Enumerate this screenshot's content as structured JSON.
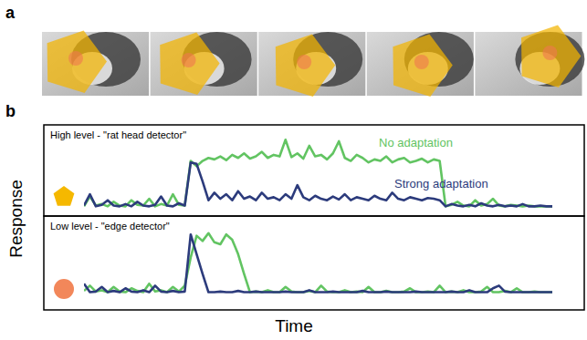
{
  "figure": {
    "panel_labels": [
      "a",
      "b"
    ],
    "ylabel": "Response",
    "xlabel": "Time"
  },
  "chart_data": [
    {
      "type": "line",
      "title": "High level - \"rat head detector\"",
      "tick_labels": false,
      "xlim": [
        0,
        79
      ],
      "ylim": [
        0,
        1
      ],
      "x": [
        0,
        1,
        2,
        3,
        4,
        5,
        6,
        7,
        8,
        9,
        10,
        11,
        12,
        13,
        14,
        15,
        16,
        17,
        18,
        19,
        20,
        21,
        22,
        23,
        24,
        25,
        26,
        27,
        28,
        29,
        30,
        31,
        32,
        33,
        34,
        35,
        36,
        37,
        38,
        39,
        40,
        41,
        42,
        43,
        44,
        45,
        46,
        47,
        48,
        49,
        50,
        51,
        52,
        53,
        54,
        55,
        56,
        57,
        58,
        59,
        60,
        61,
        62,
        63,
        64,
        65,
        66,
        67,
        68,
        69,
        70,
        71,
        72,
        73,
        74,
        75,
        76,
        77,
        78,
        79
      ],
      "series": [
        {
          "name": "No adaptation",
          "color": "#62c462",
          "values": [
            0.02,
            0.15,
            0.03,
            0.05,
            0.02,
            0.08,
            0.03,
            0.02,
            0.1,
            0.04,
            0.03,
            0.12,
            0.02,
            0.05,
            0.03,
            0.18,
            0.04,
            0.03,
            0.62,
            0.55,
            0.62,
            0.66,
            0.64,
            0.68,
            0.63,
            0.7,
            0.66,
            0.72,
            0.65,
            0.68,
            0.74,
            0.66,
            0.7,
            0.68,
            0.9,
            0.67,
            0.72,
            0.65,
            0.82,
            0.68,
            0.7,
            0.64,
            0.72,
            0.88,
            0.66,
            0.62,
            0.7,
            0.66,
            0.6,
            0.64,
            0.62,
            0.68,
            0.6,
            0.64,
            0.66,
            0.6,
            0.62,
            0.65,
            0.6,
            0.64,
            0.62,
            0.02,
            0.04,
            0.08,
            0.03,
            0.02,
            0.1,
            0.03,
            0.05,
            0.12,
            0.03,
            0.02,
            0.04,
            0.03,
            0.02,
            0.03,
            0.02,
            0.02,
            0.02,
            0.02
          ]
        },
        {
          "name": "Strong adaptation",
          "color": "#2c3b7c",
          "values": [
            0.03,
            0.18,
            0.02,
            0.04,
            0.1,
            0.03,
            0.02,
            0.05,
            0.02,
            0.08,
            0.03,
            0.02,
            0.04,
            0.15,
            0.03,
            0.02,
            0.06,
            0.03,
            0.6,
            0.58,
            0.35,
            0.1,
            0.2,
            0.12,
            0.18,
            0.1,
            0.22,
            0.12,
            0.15,
            0.1,
            0.2,
            0.12,
            0.14,
            0.1,
            0.18,
            0.12,
            0.3,
            0.14,
            0.1,
            0.16,
            0.12,
            0.1,
            0.15,
            0.11,
            0.18,
            0.1,
            0.14,
            0.12,
            0.1,
            0.16,
            0.12,
            0.1,
            0.2,
            0.12,
            0.1,
            0.14,
            0.12,
            0.1,
            0.13,
            0.12,
            0.1,
            0.02,
            0.05,
            0.03,
            0.02,
            0.04,
            0.02,
            0.06,
            0.03,
            0.02,
            0.04,
            0.02,
            0.03,
            0.02,
            0.05,
            0.02,
            0.02,
            0.03,
            0.02,
            0.02
          ]
        }
      ]
    },
    {
      "type": "line",
      "title": "Low level - \"edge detector\"",
      "tick_labels": false,
      "xlim": [
        0,
        79
      ],
      "ylim": [
        0,
        1
      ],
      "x": [
        0,
        1,
        2,
        3,
        4,
        5,
        6,
        7,
        8,
        9,
        10,
        11,
        12,
        13,
        14,
        15,
        16,
        17,
        18,
        19,
        20,
        21,
        22,
        23,
        24,
        25,
        26,
        27,
        28,
        29,
        30,
        31,
        32,
        33,
        34,
        35,
        36,
        37,
        38,
        39,
        40,
        41,
        42,
        43,
        44,
        45,
        46,
        47,
        48,
        49,
        50,
        51,
        52,
        53,
        54,
        55,
        56,
        57,
        58,
        59,
        60,
        61,
        62,
        63,
        64,
        65,
        66,
        67,
        68,
        69,
        70,
        71,
        72,
        73,
        74,
        75,
        76,
        77,
        78,
        79
      ],
      "series": [
        {
          "color": "#62c462",
          "values": [
            0.04,
            0.12,
            0.03,
            0.05,
            0.02,
            0.1,
            0.03,
            0.02,
            0.08,
            0.04,
            0.02,
            0.15,
            0.03,
            0.05,
            0.02,
            0.1,
            0.03,
            0.12,
            0.55,
            0.88,
            0.8,
            0.92,
            0.78,
            0.75,
            0.9,
            0.82,
            0.6,
            0.3,
            0.02,
            0.03,
            0.02,
            0.05,
            0.02,
            0.02,
            0.1,
            0.03,
            0.02,
            0.02,
            0.04,
            0.02,
            0.12,
            0.03,
            0.02,
            0.02,
            0.05,
            0.02,
            0.03,
            0.02,
            0.1,
            0.02,
            0.02,
            0.04,
            0.02,
            0.02,
            0.03,
            0.08,
            0.02,
            0.02,
            0.03,
            0.02,
            0.12,
            0.02,
            0.03,
            0.02,
            0.05,
            0.02,
            0.02,
            0.03,
            0.1,
            0.02,
            0.02,
            0.04,
            0.02,
            0.08,
            0.02,
            0.02,
            0.03,
            0.02,
            0.02,
            0.02
          ]
        },
        {
          "color": "#2c3b7c",
          "values": [
            0.15,
            0.02,
            0.03,
            0.1,
            0.02,
            0.04,
            0.02,
            0.08,
            0.03,
            0.02,
            0.05,
            0.02,
            0.12,
            0.03,
            0.02,
            0.04,
            0.02,
            0.03,
            0.9,
            0.6,
            0.3,
            0.02,
            0.02,
            0.03,
            0.02,
            0.02,
            0.04,
            0.02,
            0.02,
            0.03,
            0.02,
            0.02,
            0.02,
            0.02,
            0.03,
            0.02,
            0.02,
            0.02,
            0.05,
            0.02,
            0.02,
            0.02,
            0.03,
            0.02,
            0.02,
            0.02,
            0.02,
            0.04,
            0.02,
            0.02,
            0.02,
            0.03,
            0.02,
            0.02,
            0.02,
            0.02,
            0.03,
            0.02,
            0.02,
            0.02,
            0.02,
            0.02,
            0.03,
            0.02,
            0.02,
            0.05,
            0.02,
            0.02,
            0.02,
            0.08,
            0.12,
            0.03,
            0.02,
            0.02,
            0.02,
            0.02,
            0.02,
            0.02,
            0.02,
            0.02
          ]
        }
      ]
    }
  ]
}
